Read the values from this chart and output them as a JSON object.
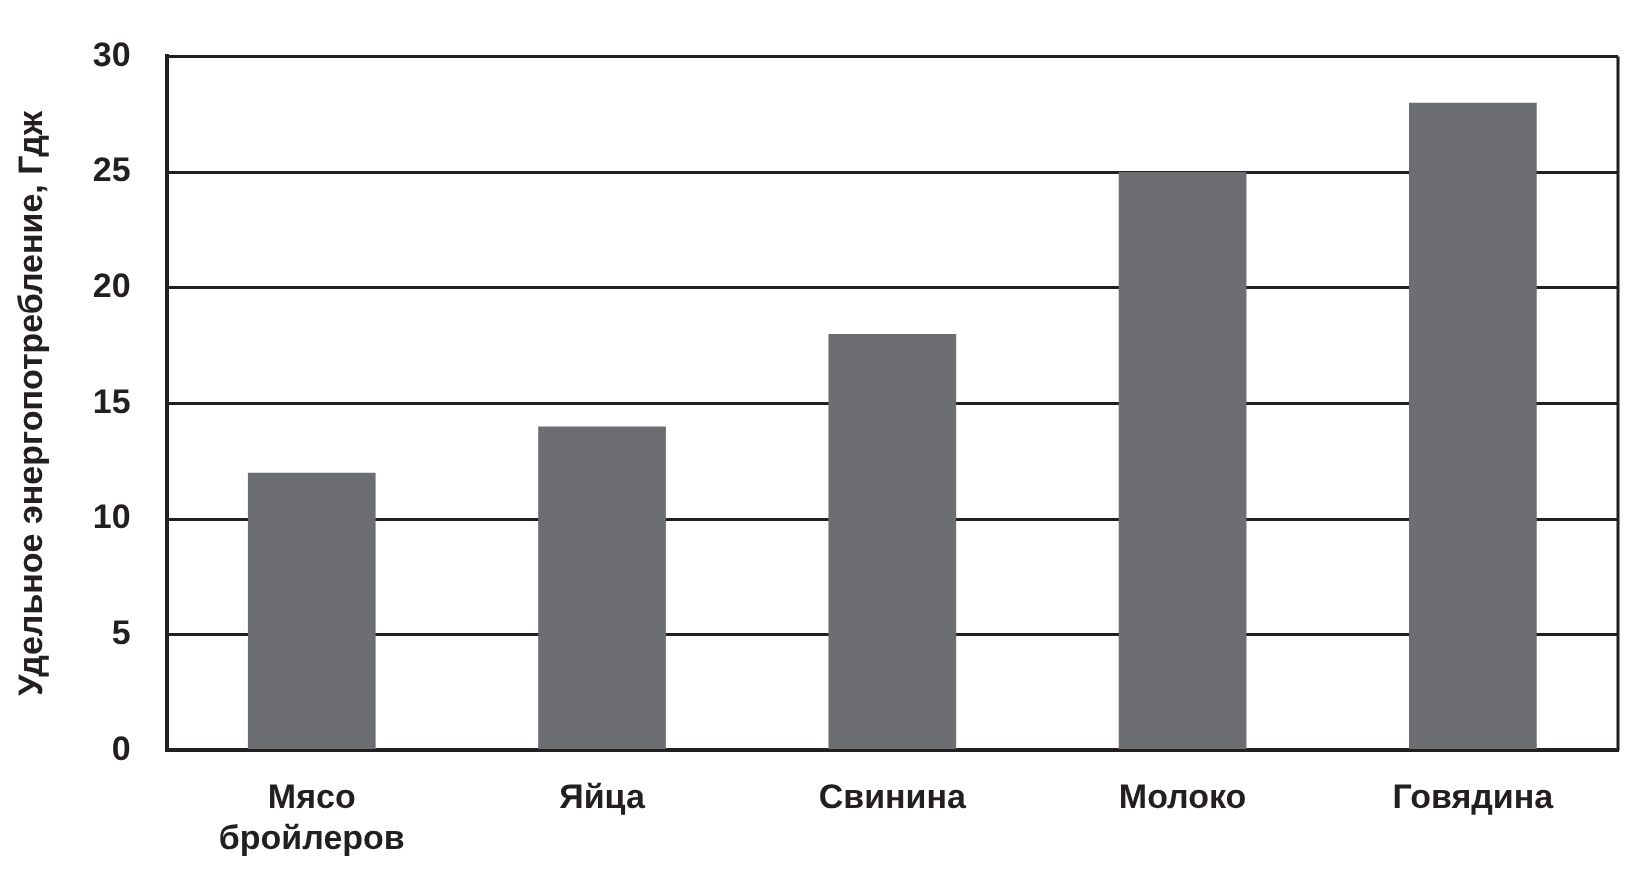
{
  "chart_data": {
    "type": "bar",
    "ylabel": "Удельное энергопотребление, Гдж",
    "categories": [
      "Мясо бройлеров",
      "Яйца",
      "Свинина",
      "Молоко",
      "Говядина"
    ],
    "values": [
      12,
      14,
      18,
      25,
      28
    ],
    "color": "#6d6e71",
    "ylim": [
      0,
      30
    ],
    "yticks": [
      0,
      5,
      10,
      15,
      20,
      25,
      30
    ],
    "grid": "y"
  }
}
